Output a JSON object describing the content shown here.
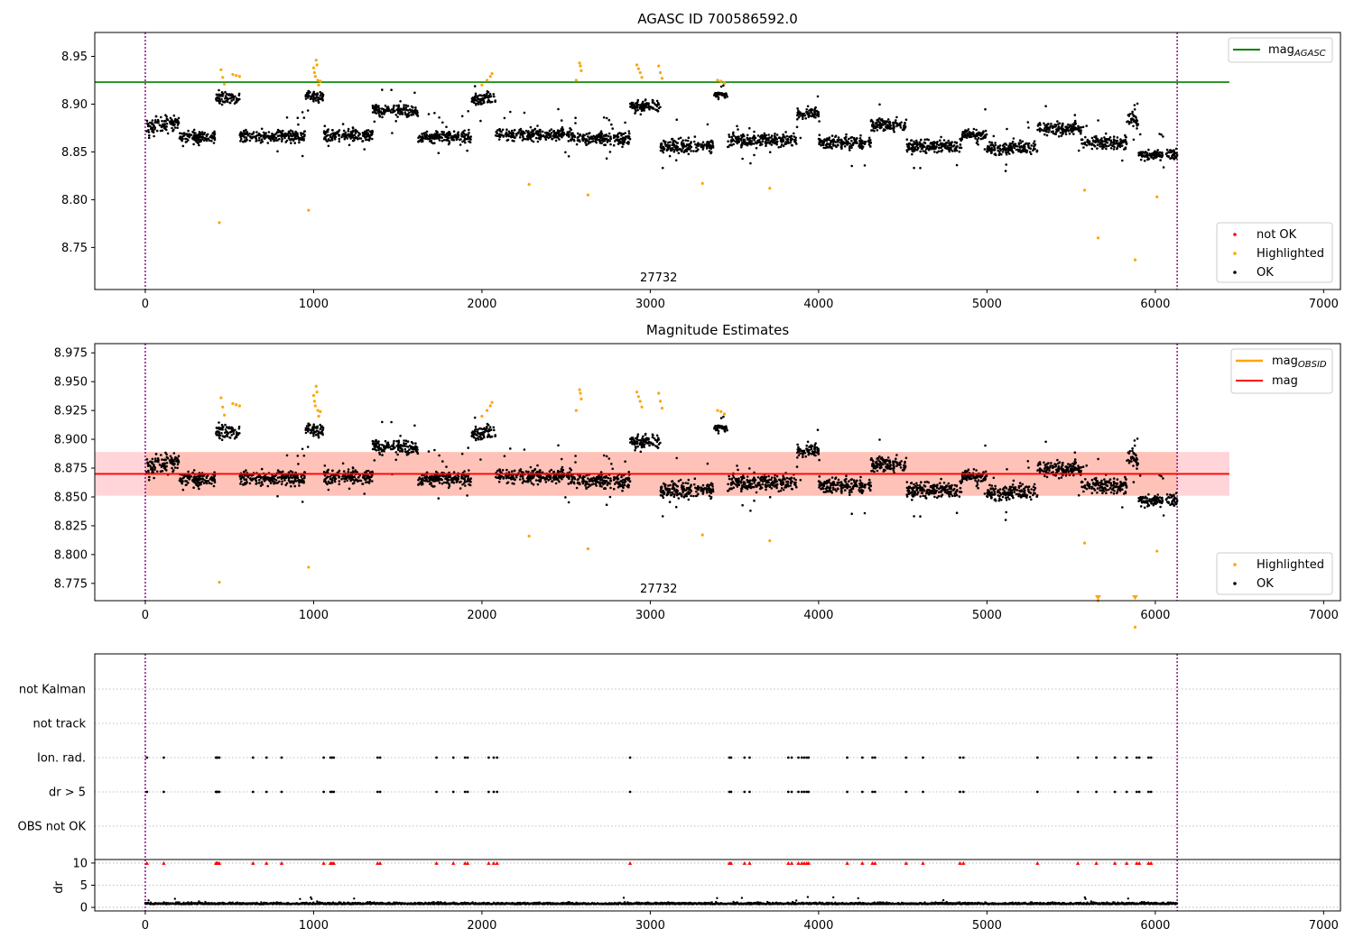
{
  "colors": {
    "ok": "#000000",
    "highlighted": "#ffa500",
    "not_ok": "#ff0000",
    "mag_agasc": "#008000",
    "mag": "#ff0000",
    "mag_obsid": "#ffa500",
    "band": "#ffb3ba",
    "bounds": "#800080"
  },
  "chart_data": [
    {
      "type": "scatter",
      "title": "AGASC ID 700586592.0",
      "xlim": [
        -300,
        7100
      ],
      "ylim": [
        8.706,
        8.975
      ],
      "xticks": [
        0,
        1000,
        2000,
        3000,
        4000,
        5000,
        6000,
        7000
      ],
      "yticks": [
        8.75,
        8.8,
        8.85,
        8.9,
        8.95
      ],
      "obsid_label": "27732",
      "obsid_label_x": 3050,
      "bounds": [
        0,
        6130
      ],
      "hline": {
        "name": "mag_AGASC",
        "label_main": "mag",
        "label_sub": "AGASC",
        "y": 8.923,
        "x": [
          -300,
          6440
        ]
      },
      "legend_top": [
        {
          "label_main": "mag",
          "label_sub": "AGASC",
          "marker": "line",
          "color_key": "mag_agasc"
        }
      ],
      "legend_bottom": [
        {
          "label": "not OK",
          "color_key": "not_ok"
        },
        {
          "label": "Highlighted",
          "color_key": "highlighted"
        },
        {
          "label": "OK",
          "color_key": "ok"
        }
      ],
      "highlighted_points": [
        [
          440,
          8.776
        ],
        [
          970,
          8.789
        ],
        [
          2280,
          8.816
        ],
        [
          2630,
          8.805
        ],
        [
          3310,
          8.817
        ],
        [
          3710,
          8.812
        ],
        [
          5580,
          8.81
        ],
        [
          5660,
          8.76
        ],
        [
          5880,
          8.737
        ],
        [
          6010,
          8.803
        ],
        [
          450,
          8.936
        ],
        [
          460,
          8.928
        ],
        [
          470,
          8.921
        ],
        [
          520,
          8.931
        ],
        [
          540,
          8.93
        ],
        [
          560,
          8.929
        ],
        [
          1000,
          8.938
        ],
        [
          1005,
          8.933
        ],
        [
          1010,
          8.929
        ],
        [
          1015,
          8.946
        ],
        [
          1020,
          8.941
        ],
        [
          1025,
          8.925
        ],
        [
          1030,
          8.92
        ],
        [
          1040,
          8.924
        ],
        [
          2000,
          8.92
        ],
        [
          2030,
          8.925
        ],
        [
          2050,
          8.929
        ],
        [
          2060,
          8.932
        ],
        [
          2560,
          8.925
        ],
        [
          2580,
          8.943
        ],
        [
          2585,
          8.94
        ],
        [
          2590,
          8.935
        ],
        [
          2920,
          8.941
        ],
        [
          2930,
          8.937
        ],
        [
          2940,
          8.933
        ],
        [
          2950,
          8.928
        ],
        [
          3050,
          8.94
        ],
        [
          3060,
          8.933
        ],
        [
          3070,
          8.927
        ],
        [
          3400,
          8.925
        ],
        [
          3420,
          8.924
        ],
        [
          3440,
          8.922
        ]
      ],
      "segments": [
        {
          "x": [
            0,
            60
          ],
          "y": 8.876,
          "amp": 0.012
        },
        {
          "x": [
            60,
            200
          ],
          "y": 8.88,
          "amp": 0.014
        },
        {
          "x": [
            200,
            420
          ],
          "y": 8.866,
          "amp": 0.011
        },
        {
          "x": [
            420,
            560
          ],
          "y": 8.906,
          "amp": 0.012
        },
        {
          "x": [
            560,
            950
          ],
          "y": 8.866,
          "amp": 0.012
        },
        {
          "x": [
            950,
            1060
          ],
          "y": 8.908,
          "amp": 0.01
        },
        {
          "x": [
            1060,
            1350
          ],
          "y": 8.868,
          "amp": 0.012
        },
        {
          "x": [
            1350,
            1620
          ],
          "y": 8.893,
          "amp": 0.011
        },
        {
          "x": [
            1620,
            1940
          ],
          "y": 8.866,
          "amp": 0.012
        },
        {
          "x": [
            1940,
            2080
          ],
          "y": 8.906,
          "amp": 0.011
        },
        {
          "x": [
            2080,
            2540
          ],
          "y": 8.868,
          "amp": 0.011
        },
        {
          "x": [
            2540,
            2880
          ],
          "y": 8.864,
          "amp": 0.012
        },
        {
          "x": [
            2880,
            3060
          ],
          "y": 8.898,
          "amp": 0.012
        },
        {
          "x": [
            3060,
            3380
          ],
          "y": 8.856,
          "amp": 0.013
        },
        {
          "x": [
            3380,
            3460
          ],
          "y": 8.91,
          "amp": 0.007
        },
        {
          "x": [
            3460,
            3870
          ],
          "y": 8.862,
          "amp": 0.012
        },
        {
          "x": [
            3870,
            4000
          ],
          "y": 8.89,
          "amp": 0.01
        },
        {
          "x": [
            4000,
            4310
          ],
          "y": 8.86,
          "amp": 0.011
        },
        {
          "x": [
            4310,
            4520
          ],
          "y": 8.878,
          "amp": 0.013
        },
        {
          "x": [
            4520,
            4850
          ],
          "y": 8.856,
          "amp": 0.012
        },
        {
          "x": [
            4850,
            5000
          ],
          "y": 8.868,
          "amp": 0.012
        },
        {
          "x": [
            5000,
            5300
          ],
          "y": 8.854,
          "amp": 0.012
        },
        {
          "x": [
            5300,
            5560
          ],
          "y": 8.874,
          "amp": 0.012
        },
        {
          "x": [
            5560,
            5830
          ],
          "y": 8.86,
          "amp": 0.012
        },
        {
          "x": [
            5830,
            5900
          ],
          "y": 8.884,
          "amp": 0.013
        },
        {
          "x": [
            5900,
            6130
          ],
          "y": 8.847,
          "amp": 0.01
        }
      ]
    },
    {
      "type": "scatter",
      "title": "Magnitude Estimates",
      "xlim": [
        -300,
        7100
      ],
      "ylim": [
        8.76,
        8.983
      ],
      "xticks": [
        0,
        1000,
        2000,
        3000,
        4000,
        5000,
        6000,
        7000
      ],
      "yticks": [
        8.775,
        8.8,
        8.825,
        8.85,
        8.875,
        8.9,
        8.925,
        8.95,
        8.975
      ],
      "obsid_label": "27732",
      "obsid_label_x": 3050,
      "bounds": [
        0,
        6130
      ],
      "mag_line": {
        "y": 8.87,
        "x": [
          -300,
          6440
        ]
      },
      "mag_obsid_band": {
        "y": [
          8.851,
          8.889
        ],
        "x": [
          -300,
          6440
        ]
      },
      "off_scale_markers": [
        5660,
        5880
      ],
      "legend_top": [
        {
          "label_main": "mag",
          "label_sub": "OBSID",
          "marker": "line",
          "color_key": "mag_obsid"
        },
        {
          "label_main": "mag",
          "label_sub": "",
          "marker": "line",
          "color_key": "mag"
        }
      ],
      "legend_bottom": [
        {
          "label": "Highlighted",
          "color_key": "highlighted"
        },
        {
          "label": "OK",
          "color_key": "ok"
        }
      ]
    },
    {
      "type": "scatter",
      "title": "",
      "xlim": [
        -300,
        7100
      ],
      "xticks": [
        0,
        1000,
        2000,
        3000,
        4000,
        5000,
        6000,
        7000
      ],
      "bounds": [
        0,
        6130
      ],
      "flag_rows": [
        "not Kalman",
        "not track",
        "Ion. rad.",
        "dr > 5",
        "OBS not OK"
      ],
      "flag_times": [
        10,
        110,
        420,
        425,
        430,
        440,
        640,
        720,
        810,
        1060,
        1100,
        1110,
        1120,
        1380,
        1395,
        1730,
        1830,
        1900,
        1915,
        2040,
        2070,
        2090,
        2880,
        3470,
        3480,
        3560,
        3590,
        3820,
        3840,
        3880,
        3900,
        3915,
        3930,
        3940,
        4170,
        4260,
        4320,
        4335,
        4520,
        4620,
        4840,
        4860,
        5300,
        5540,
        5650,
        5760,
        5830,
        5890,
        5905,
        5960,
        5975
      ],
      "flag_rows_with_data": [
        "Ion. rad.",
        "dr > 5"
      ],
      "dr_panel": {
        "ylabel": "dr",
        "yticks": [
          0,
          5,
          10
        ],
        "ylim": [
          -0.8,
          10.8
        ],
        "cap": 10,
        "baseline": 0.7,
        "amp": 0.6
      }
    }
  ]
}
